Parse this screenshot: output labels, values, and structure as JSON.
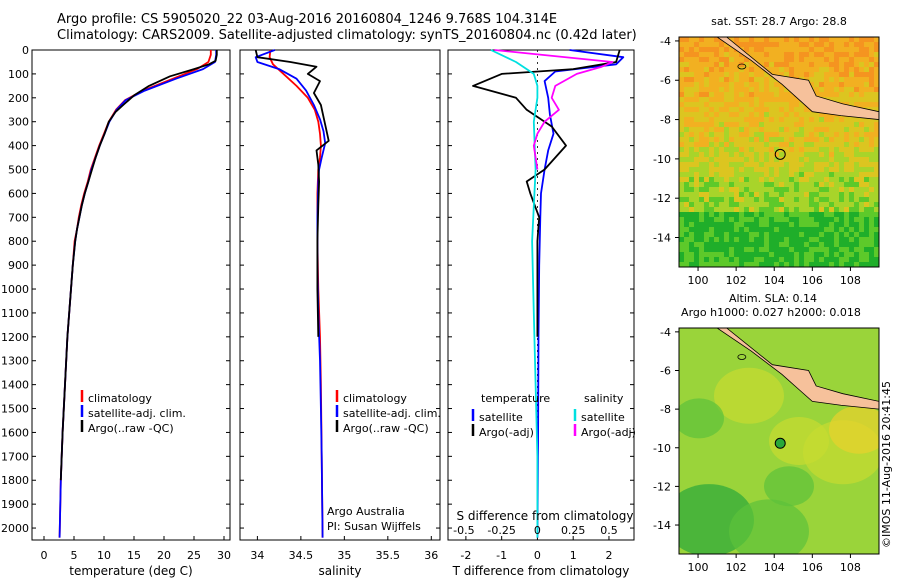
{
  "header": {
    "line1": "Argo profile: CS 5905020_22 03-Aug-2016 20160804_1246 9.768S 104.314E",
    "line2": "Climatology: CARS2009. Satellite-adjusted climatology: synTS_20160804.nc (0.42d later)"
  },
  "credit": "©IMOS 11-Aug-2016 20:41:45",
  "colors": {
    "climatology": "#ff0000",
    "satellite": "#0000ff",
    "argo": "#000000",
    "salinity_satellite": "#00e0e0",
    "salinity_argo": "#ff00ff"
  },
  "chart_data": [
    {
      "id": "temperature",
      "type": "line",
      "xlabel": "temperature (deg C)",
      "ylabel": "",
      "xlim": [
        -2,
        31
      ],
      "ylim": [
        2050,
        0
      ],
      "xticks": [
        0,
        5,
        10,
        15,
        20,
        25,
        30
      ],
      "yticks": [
        0,
        100,
        200,
        300,
        400,
        500,
        600,
        700,
        800,
        900,
        1000,
        1100,
        1200,
        1300,
        1400,
        1500,
        1600,
        1700,
        1800,
        1900,
        2000
      ],
      "legend": {
        "position": "bottom-left",
        "entries": [
          "climatology",
          "satellite-adj. clim.",
          "Argo(..raw -QC)"
        ]
      },
      "series": [
        {
          "name": "climatology",
          "color": "#ff0000",
          "x": [
            27.8,
            27.8,
            27.4,
            25.5,
            21.5,
            16.5,
            13.5,
            12.0,
            10.8,
            10.0,
            9.2,
            8.5,
            7.8,
            7.3,
            6.7,
            6.2,
            5.8,
            5.5,
            5.1,
            4.8,
            4.5,
            4.2,
            3.9,
            3.5,
            3.1,
            2.8,
            2.6
          ],
          "y": [
            0,
            20,
            50,
            80,
            120,
            170,
            210,
            250,
            300,
            350,
            400,
            450,
            500,
            550,
            600,
            650,
            700,
            750,
            800,
            900,
            1000,
            1100,
            1200,
            1400,
            1600,
            1800,
            2040
          ]
        },
        {
          "name": "satellite-adj. clim.",
          "color": "#0000ff",
          "x": [
            28.7,
            28.7,
            28.5,
            26.5,
            22.0,
            16.8,
            13.6,
            12.1,
            10.9,
            10.1,
            9.3,
            8.6,
            7.9,
            7.4,
            6.8,
            6.3,
            5.9,
            5.5,
            5.2,
            4.8,
            4.5,
            4.2,
            3.9,
            3.5,
            3.1,
            2.8,
            2.6
          ],
          "y": [
            0,
            20,
            50,
            80,
            120,
            170,
            210,
            250,
            300,
            350,
            400,
            450,
            500,
            550,
            600,
            650,
            700,
            750,
            800,
            900,
            1000,
            1100,
            1200,
            1400,
            1600,
            1800,
            2040
          ]
        },
        {
          "name": "Argo(..raw -QC)",
          "color": "#000000",
          "x": [
            28.8,
            28.8,
            28.6,
            27.5,
            25.0,
            21.0,
            17.5,
            15.0,
            13.2,
            11.9,
            10.8,
            10.1,
            9.3,
            8.6,
            8.0,
            7.4,
            6.8,
            6.3,
            5.9,
            5.5,
            5.2,
            4.8,
            4.5,
            4.2,
            3.9,
            3.5,
            3.1,
            2.8
          ],
          "y": [
            0,
            20,
            45,
            60,
            80,
            110,
            150,
            190,
            230,
            260,
            300,
            350,
            400,
            450,
            500,
            550,
            600,
            650,
            700,
            750,
            800,
            900,
            1000,
            1100,
            1200,
            1400,
            1600,
            1800
          ]
        }
      ]
    },
    {
      "id": "salinity",
      "type": "line",
      "xlabel": "salinity",
      "ylabel": "",
      "xlim": [
        33.8,
        36.1
      ],
      "ylim": [
        2050,
        0
      ],
      "xticks": [
        34,
        34.5,
        35,
        35.5,
        36
      ],
      "xticklabels": [
        "34",
        "34.5",
        "35",
        "35.5",
        "36"
      ],
      "legend": {
        "position": "bottom-right",
        "entries": [
          "climatology",
          "satellite-adj. clim.",
          "Argo(..raw -QC)"
        ]
      },
      "annotations": [
        "Argo Australia",
        "PI: Susan Wijffels"
      ],
      "series": [
        {
          "name": "climatology",
          "color": "#ff0000",
          "x": [
            34.15,
            34.14,
            34.18,
            34.3,
            34.45,
            34.58,
            34.66,
            34.7,
            34.72,
            34.73,
            34.72,
            34.7,
            34.69,
            34.69,
            34.7,
            34.72,
            34.73,
            34.74,
            34.75
          ],
          "y": [
            0,
            30,
            60,
            100,
            150,
            200,
            250,
            300,
            350,
            400,
            450,
            500,
            600,
            800,
            1000,
            1200,
            1400,
            1700,
            2040
          ]
        },
        {
          "name": "satellite-adj. clim.",
          "color": "#0000ff",
          "x": [
            34.2,
            33.98,
            34.0,
            34.25,
            34.45,
            34.56,
            34.65,
            34.72,
            34.76,
            34.78,
            34.74,
            34.71,
            34.7,
            34.69,
            34.69,
            34.7,
            34.72,
            34.73,
            34.74,
            34.75
          ],
          "y": [
            0,
            30,
            50,
            80,
            120,
            170,
            230,
            290,
            340,
            390,
            450,
            500,
            550,
            700,
            900,
            1100,
            1300,
            1500,
            1700,
            2040
          ]
        },
        {
          "name": "Argo(..raw -QC)",
          "color": "#000000",
          "x": [
            33.98,
            34.0,
            34.38,
            34.68,
            34.58,
            34.72,
            34.65,
            34.73,
            34.76,
            34.82,
            34.68,
            34.7,
            34.71,
            34.7,
            34.69,
            34.69,
            34.7
          ],
          "y": [
            0,
            30,
            50,
            70,
            100,
            130,
            180,
            230,
            280,
            380,
            420,
            480,
            550,
            650,
            800,
            1000,
            1200
          ]
        }
      ]
    },
    {
      "id": "difference",
      "type": "line",
      "xlabel": "T difference from climatology",
      "x2label": "S difference from climatology",
      "ylabel": "",
      "xlim": [
        -2.5,
        2.7
      ],
      "ylim": [
        2050,
        0
      ],
      "xticks": [
        -2,
        -1,
        0,
        1,
        2
      ],
      "x2ticks": [
        "-0.5",
        "-0.25",
        "0",
        "0.25",
        "0.5"
      ],
      "zero_line": true,
      "legend": {
        "position": "bottom",
        "headers": [
          "temperature",
          "salinity"
        ],
        "entries": [
          "satellite",
          "Argo(-adj)",
          "satellite",
          "Argo(-adj)"
        ]
      },
      "series": [
        {
          "name": "satellite",
          "group": "temperature",
          "color": "#0000ff",
          "x": [
            0.9,
            2.4,
            2.2,
            0.5,
            0.2,
            0.3,
            0.35,
            0.45,
            0.3,
            0.2,
            0.1,
            0.08,
            0.05,
            0.03,
            0.02,
            0.0
          ],
          "y": [
            0,
            30,
            60,
            90,
            130,
            200,
            270,
            350,
            420,
            500,
            600,
            700,
            900,
            1200,
            1600,
            2040
          ]
        },
        {
          "name": "Argo(-adj)",
          "group": "temperature",
          "color": "#000000",
          "x": [
            2.3,
            2.2,
            1.0,
            -1.0,
            -1.8,
            -0.6,
            -0.3,
            0.4,
            0.8,
            0.2,
            -0.3,
            -0.2,
            0.05,
            0.0,
            0.0,
            0.0
          ],
          "y": [
            0,
            50,
            80,
            100,
            150,
            200,
            250,
            320,
            400,
            500,
            550,
            600,
            700,
            800,
            1000,
            1200
          ]
        },
        {
          "name": "satellite",
          "group": "salinity",
          "color": "#00e0e0",
          "x": [
            -1.3,
            -0.6,
            -0.1,
            0.0,
            0.0,
            -0.1,
            -0.05,
            -0.15,
            -0.1,
            -0.05,
            0.0,
            0.0
          ],
          "y": [
            0,
            50,
            100,
            150,
            200,
            300,
            500,
            800,
            1100,
            1400,
            1700,
            2040
          ]
        },
        {
          "name": "Argo(-adj)",
          "group": "salinity",
          "color": "#ff00ff",
          "x": [
            -1.2,
            2.1,
            1.8,
            1.1,
            0.5,
            0.4,
            0.6,
            0.2,
            0.0,
            -0.1,
            -0.05,
            0.0
          ],
          "y": [
            0,
            50,
            70,
            100,
            150,
            200,
            250,
            300,
            350,
            400,
            450,
            500
          ]
        }
      ]
    },
    {
      "id": "sst_map",
      "type": "heatmap",
      "title": "sat. SST: 28.7 Argo: 28.8",
      "xlim": [
        99,
        109.5
      ],
      "ylim": [
        -15.5,
        -3.8
      ],
      "xticks": [
        100,
        102,
        104,
        106,
        108
      ],
      "yticks": [
        -4,
        -6,
        -8,
        -10,
        -12,
        -14
      ],
      "marker": {
        "x": 104.314,
        "y": -9.768
      },
      "colors": [
        "#1fae2a",
        "#5dc92a",
        "#a8d42a",
        "#dcc520",
        "#f2b021",
        "#f59420"
      ],
      "land_color": "#f6c19b"
    },
    {
      "id": "sla_map",
      "type": "heatmap",
      "title": "Altim. SLA: 0.14",
      "subtitle": "Argo h1000: 0.027 h2000: 0.018",
      "xlim": [
        99,
        109.5
      ],
      "ylim": [
        -15.5,
        -3.8
      ],
      "xticks": [
        100,
        102,
        104,
        106,
        108
      ],
      "yticks": [
        -4,
        -6,
        -8,
        -10,
        -12,
        -14
      ],
      "marker": {
        "x": 104.314,
        "y": -9.768
      },
      "colors": [
        "#2aa83a",
        "#5cc23a",
        "#9ad43a",
        "#c8dc30",
        "#e9d22c"
      ],
      "land_color": "#f6c19b"
    }
  ]
}
